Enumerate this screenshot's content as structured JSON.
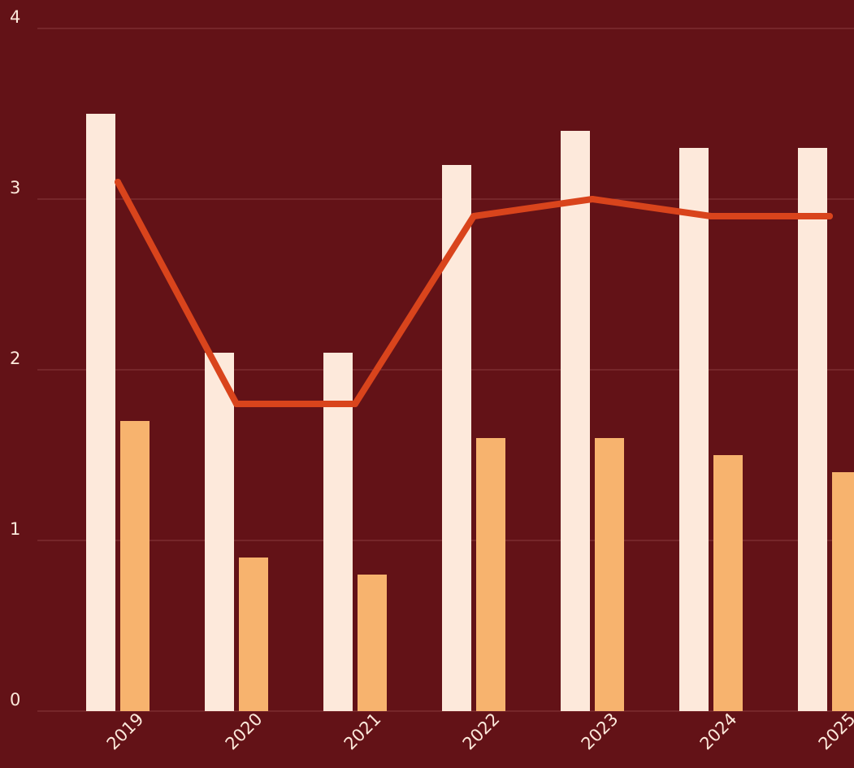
{
  "colors": {
    "background": "#631217",
    "gridline": "#8a3a3d",
    "axis_text": "#fde9db",
    "series_1": "#fde9db",
    "series_2": "#f7b36e",
    "line": "#d9441c"
  },
  "chart_data": {
    "type": "bar",
    "title": "",
    "xlabel": "",
    "ylabel": "",
    "categories": [
      "2019",
      "2020",
      "2021",
      "2022",
      "2023",
      "2024",
      "2025"
    ],
    "ylim": [
      0,
      4
    ],
    "yticks": [
      "0",
      "1",
      "2",
      "3",
      "4"
    ],
    "grid": true,
    "legend": "none",
    "series": [
      {
        "type": "bar",
        "values": [
          3.5,
          2.1,
          2.1,
          3.2,
          3.4,
          3.3,
          3.3
        ]
      },
      {
        "type": "bar",
        "values": [
          1.7,
          0.9,
          0.8,
          1.6,
          1.6,
          1.5,
          1.4
        ]
      },
      {
        "type": "line",
        "values": [
          3.1,
          1.8,
          1.8,
          2.9,
          3.0,
          2.9,
          2.9
        ]
      }
    ]
  }
}
